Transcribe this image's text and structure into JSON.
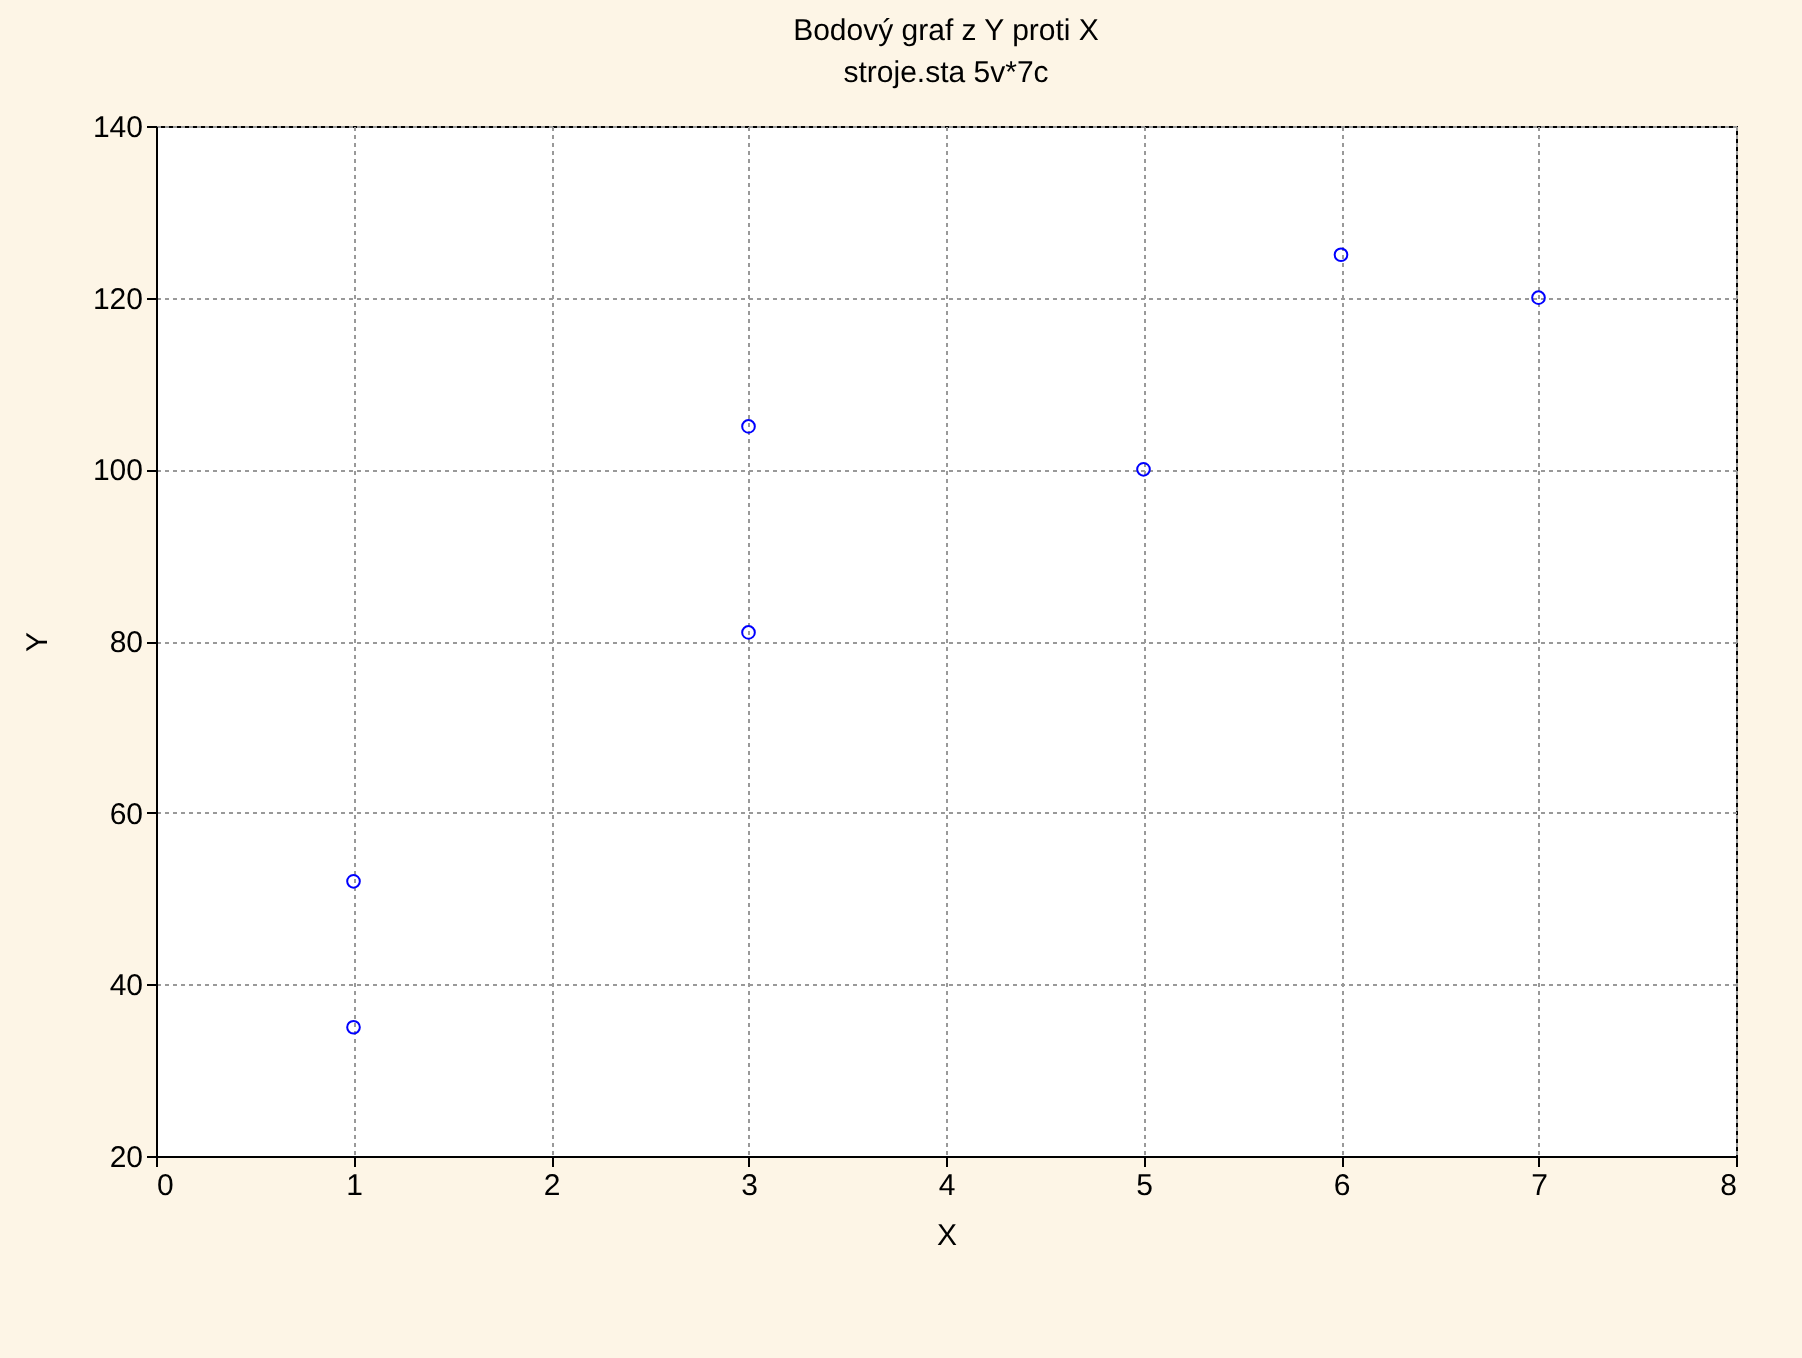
{
  "chart_data": {
    "type": "scatter",
    "title": "Bodový graf z Y proti X",
    "subtitle": "stroje.sta 5v*7c",
    "xlabel": "X",
    "ylabel": "Y",
    "x": [
      1,
      1,
      3,
      3,
      5,
      6,
      7
    ],
    "series": [
      {
        "color": "#0000ff",
        "values": [
          52,
          35,
          105,
          81,
          100,
          125,
          120
        ]
      }
    ],
    "xlim": [
      0,
      8
    ],
    "xticks": [
      0,
      1,
      2,
      3,
      4,
      5,
      6,
      7,
      8
    ],
    "ylim": [
      20,
      140
    ],
    "yticks": [
      20,
      40,
      60,
      80,
      100,
      120,
      140
    ],
    "grid": true,
    "marker": "circle"
  }
}
